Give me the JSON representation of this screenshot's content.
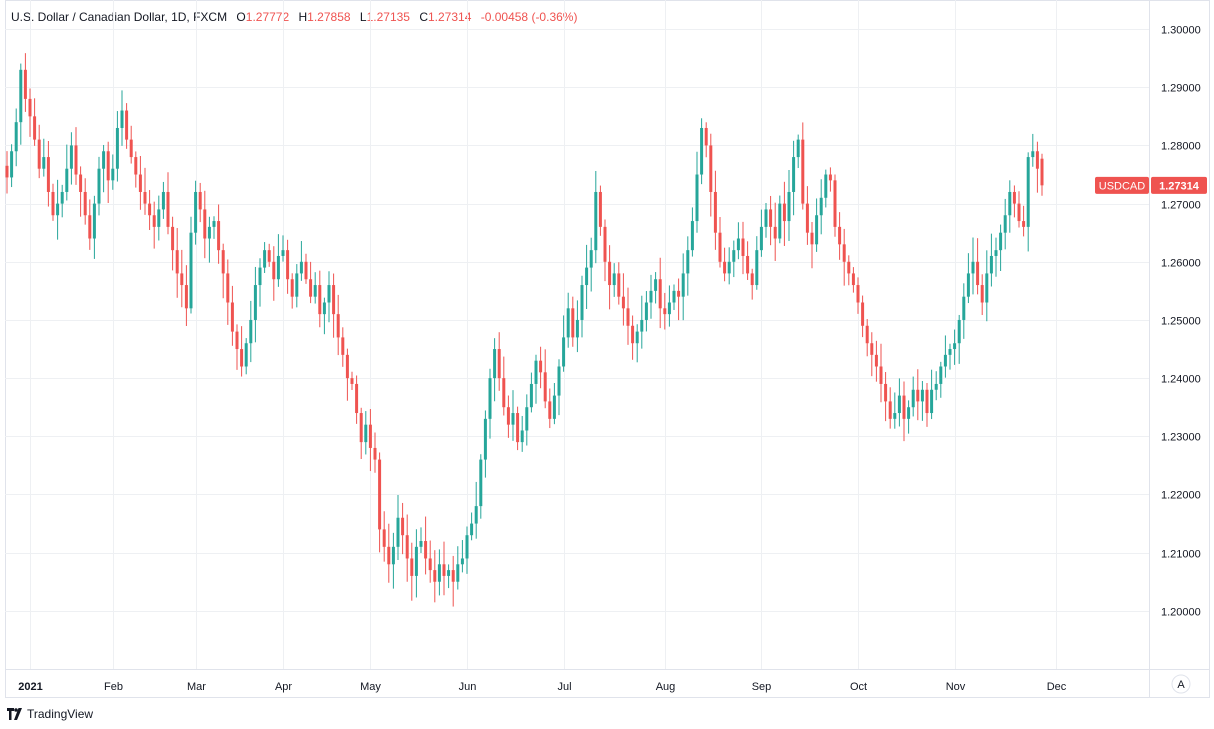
{
  "legend": {
    "symbol": "U.S. Dollar / Canadian Dollar, 1D, FXCM",
    "o_label": "O",
    "o_value": "1.27772",
    "h_label": "H",
    "h_value": "1.27858",
    "l_label": "L",
    "l_value": "1.27135",
    "c_label": "C",
    "c_value": "1.27314",
    "change": "-0.00458 (-0.36%)"
  },
  "price_label": {
    "ticker": "USDCAD",
    "value": "1.27314",
    "value_num": 1.27314
  },
  "scale_mode_button": "A",
  "branding": {
    "name": "TradingView"
  },
  "colors": {
    "up": "#26a69a",
    "down": "#ef5350",
    "grid": "#eef0f3",
    "axis_text": "#131722"
  },
  "chart_data": {
    "type": "candlestick",
    "symbol": "USDCAD",
    "interval": "1D",
    "ylim": [
      1.19,
      1.305
    ],
    "y_ticks": [
      "1.30000",
      "1.29000",
      "1.28000",
      "1.27000",
      "1.26000",
      "1.25000",
      "1.24000",
      "1.23000",
      "1.22000",
      "1.21000",
      "1.20000"
    ],
    "y_tick_values": [
      1.3,
      1.29,
      1.28,
      1.27,
      1.26,
      1.25,
      1.24,
      1.23,
      1.22,
      1.21,
      1.2
    ],
    "x_ticks": [
      "2021",
      "Feb",
      "Mar",
      "Apr",
      "May",
      "Jun",
      "Jul",
      "Aug",
      "Sep",
      "Oct",
      "Nov",
      "Dec"
    ],
    "x_tick_index": [
      5,
      23,
      41,
      60,
      79,
      100,
      121,
      143,
      164,
      185,
      206,
      228
    ],
    "closes": [
      1.2745,
      1.279,
      1.284,
      1.293,
      1.288,
      1.285,
      1.281,
      1.276,
      1.278,
      1.272,
      1.268,
      1.27,
      1.272,
      1.276,
      1.28,
      1.275,
      1.272,
      1.268,
      1.264,
      1.27,
      1.276,
      1.279,
      1.274,
      1.276,
      1.283,
      1.286,
      1.281,
      1.278,
      1.275,
      1.272,
      1.27,
      1.268,
      1.266,
      1.269,
      1.272,
      1.266,
      1.262,
      1.258,
      1.256,
      1.252,
      1.265,
      1.272,
      1.269,
      1.264,
      1.266,
      1.267,
      1.262,
      1.258,
      1.253,
      1.248,
      1.245,
      1.242,
      1.246,
      1.25,
      1.256,
      1.259,
      1.262,
      1.26,
      1.257,
      1.261,
      1.262,
      1.257,
      1.254,
      1.258,
      1.26,
      1.257,
      1.254,
      1.256,
      1.251,
      1.253,
      1.256,
      1.251,
      1.247,
      1.244,
      1.24,
      1.239,
      1.234,
      1.229,
      1.232,
      1.228,
      1.226,
      1.214,
      1.211,
      1.208,
      1.211,
      1.216,
      1.213,
      1.209,
      1.206,
      1.211,
      1.212,
      1.209,
      1.207,
      1.205,
      1.208,
      1.206,
      1.207,
      1.205,
      1.208,
      1.209,
      1.213,
      1.215,
      1.218,
      1.226,
      1.233,
      1.24,
      1.245,
      1.24,
      1.235,
      1.232,
      1.234,
      1.229,
      1.231,
      1.235,
      1.239,
      1.243,
      1.241,
      1.236,
      1.233,
      1.237,
      1.242,
      1.247,
      1.252,
      1.247,
      1.25,
      1.256,
      1.259,
      1.262,
      1.272,
      1.266,
      1.26,
      1.256,
      1.258,
      1.254,
      1.252,
      1.249,
      1.246,
      1.248,
      1.25,
      1.253,
      1.255,
      1.257,
      1.252,
      1.251,
      1.253,
      1.255,
      1.254,
      1.258,
      1.262,
      1.267,
      1.275,
      1.283,
      1.28,
      1.272,
      1.265,
      1.26,
      1.258,
      1.26,
      1.262,
      1.264,
      1.261,
      1.258,
      1.256,
      1.262,
      1.266,
      1.269,
      1.266,
      1.264,
      1.27,
      1.267,
      1.272,
      1.278,
      1.281,
      1.27,
      1.265,
      1.263,
      1.268,
      1.271,
      1.275,
      1.274,
      1.266,
      1.263,
      1.26,
      1.258,
      1.256,
      1.253,
      1.249,
      1.246,
      1.244,
      1.242,
      1.239,
      1.236,
      1.233,
      1.234,
      1.237,
      1.233,
      1.235,
      1.238,
      1.236,
      1.238,
      1.234,
      1.238,
      1.239,
      1.242,
      1.244,
      1.245,
      1.246,
      1.25,
      1.254,
      1.258,
      1.26,
      1.256,
      1.253,
      1.258,
      1.261,
      1.262,
      1.265,
      1.268,
      1.272,
      1.27,
      1.267,
      1.266,
      1.278,
      1.279,
      1.276,
      1.2731
    ],
    "last": {
      "open": 1.27772,
      "high": 1.27858,
      "low": 1.27135,
      "close": 1.27314,
      "change": -0.00458,
      "change_pct": -0.36
    }
  }
}
